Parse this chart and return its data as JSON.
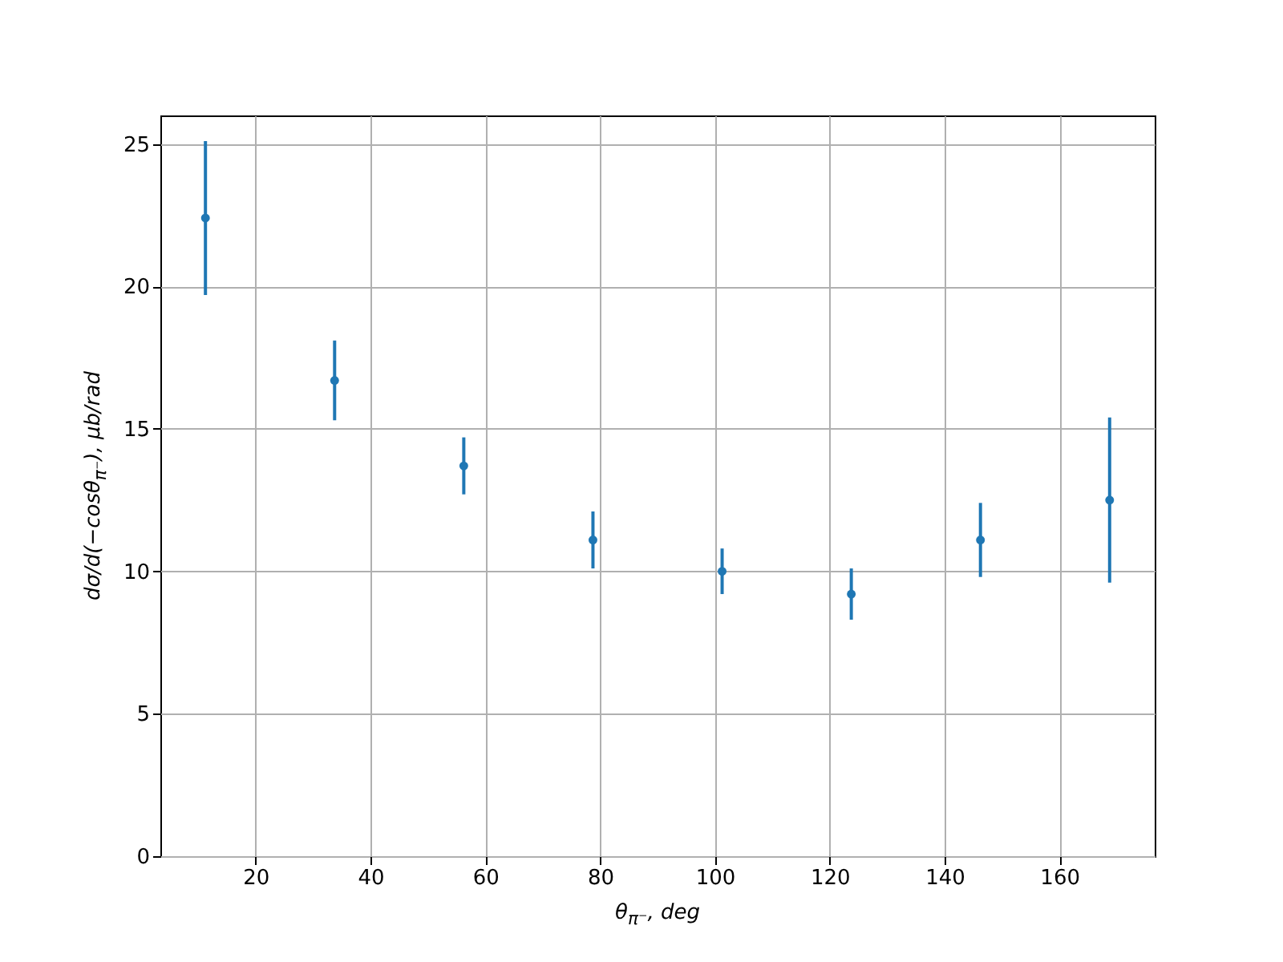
{
  "chart_data": {
    "type": "scatter",
    "xlabel": "θ$_{π⁻}$, deg",
    "ylabel": "dσ/d(−cosθ$_{π⁻}$), μb/rad",
    "x": [
      11.25,
      33.75,
      56.25,
      78.75,
      101.25,
      123.75,
      146.25,
      168.75
    ],
    "series": [
      {
        "color": "#1f77b4",
        "values": [
          22.4,
          16.7,
          13.7,
          11.1,
          10.0,
          9.2,
          11.1,
          12.5
        ],
        "errors": [
          2.7,
          1.4,
          1.0,
          1.0,
          0.8,
          0.9,
          1.3,
          2.9
        ]
      }
    ],
    "xlim": [
      3.4,
      176.6
    ],
    "ylim": [
      0,
      26
    ],
    "xticks": [
      20,
      40,
      60,
      80,
      100,
      120,
      140,
      160
    ],
    "yticks": [
      0,
      5,
      10,
      15,
      20,
      25
    ],
    "grid": true,
    "marker": "circle"
  }
}
